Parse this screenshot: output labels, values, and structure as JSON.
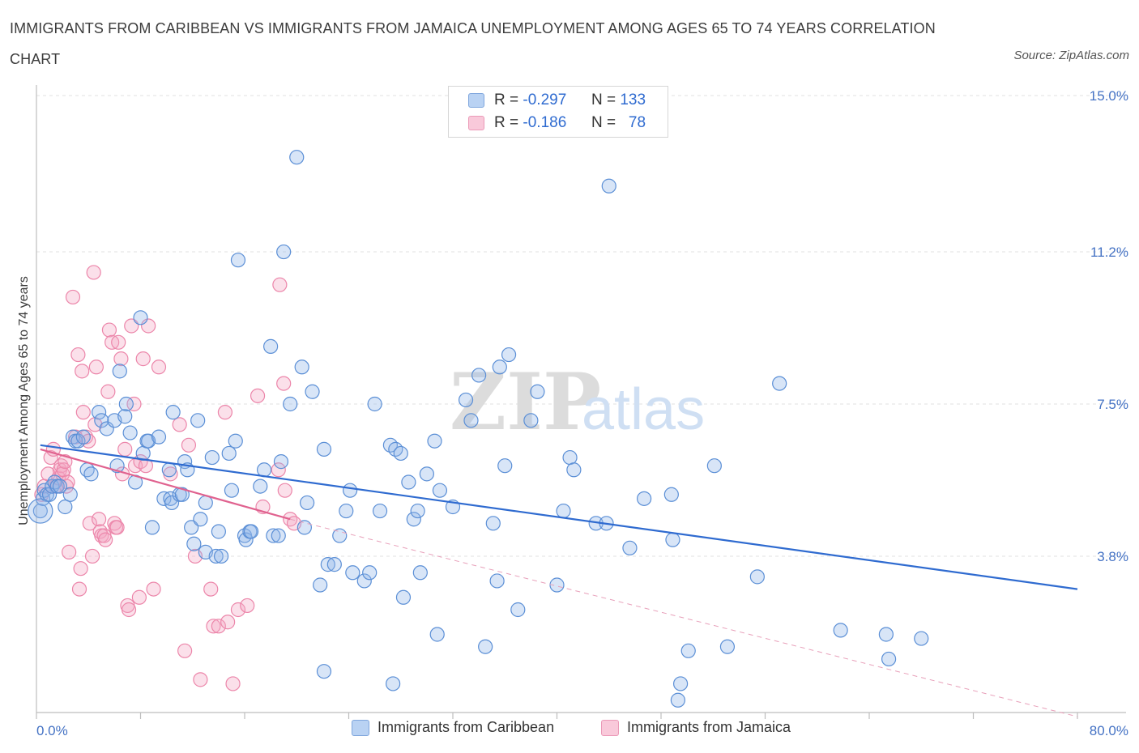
{
  "title": "IMMIGRANTS FROM CARIBBEAN VS IMMIGRANTS FROM JAMAICA UNEMPLOYMENT AMONG AGES 65 TO 74 YEARS CORRELATION CHART",
  "source": "Source: ZipAtlas.com",
  "watermark": {
    "zip": "ZIP",
    "atlas": "atlas"
  },
  "stats": [
    {
      "r_label": "R =",
      "r_value": "-0.297",
      "n_label": "N =",
      "n_value": "133",
      "color": "#8fb4e8"
    },
    {
      "r_label": "R =",
      "r_value": "-0.186",
      "n_label": "N =",
      "n_value": "78",
      "color": "#f3a6c2"
    }
  ],
  "legend": [
    {
      "label": "Immigrants from Caribbean",
      "color": "#8fb4e8"
    },
    {
      "label": "Immigrants from Jamaica",
      "color": "#f3a6c2"
    }
  ],
  "chart_data": {
    "type": "scatter",
    "title": "IMMIGRANTS FROM CARIBBEAN VS IMMIGRANTS FROM JAMAICA UNEMPLOYMENT AMONG AGES 65 TO 74 YEARS CORRELATION CHART",
    "xlabel": "",
    "ylabel": "Unemployment Among Ages 65 to 74 years",
    "xlim": [
      0,
      80
    ],
    "ylim": [
      0,
      15
    ],
    "x_tick_labels": [
      "0.0%",
      "80.0%"
    ],
    "y_ticks": [
      3.8,
      7.5,
      11.2,
      15.0
    ],
    "y_tick_labels": [
      "3.8%",
      "7.5%",
      "11.2%",
      "15.0%"
    ],
    "grid": true,
    "series": [
      {
        "name": "Immigrants from Caribbean",
        "color": "#5b8fd6",
        "trend": {
          "x0": 0.3,
          "y0": 6.5,
          "x1": 80,
          "y1": 3.0,
          "color": "#2f6bd0"
        },
        "points": [
          [
            0.3,
            4.9
          ],
          [
            0.5,
            5.2
          ],
          [
            0.6,
            5.4
          ],
          [
            0.8,
            5.3
          ],
          [
            1.0,
            5.3
          ],
          [
            1.2,
            5.5
          ],
          [
            1.4,
            5.6
          ],
          [
            1.6,
            5.5
          ],
          [
            1.8,
            5.5
          ],
          [
            2.2,
            5.0
          ],
          [
            2.6,
            5.3
          ],
          [
            2.8,
            6.7
          ],
          [
            3.0,
            6.6
          ],
          [
            3.2,
            6.6
          ],
          [
            3.6,
            6.7
          ],
          [
            3.9,
            5.9
          ],
          [
            4.2,
            5.8
          ],
          [
            4.8,
            7.3
          ],
          [
            5.0,
            7.1
          ],
          [
            5.4,
            6.9
          ],
          [
            6.0,
            7.1
          ],
          [
            6.2,
            6.0
          ],
          [
            6.4,
            8.3
          ],
          [
            6.8,
            7.2
          ],
          [
            6.9,
            7.5
          ],
          [
            7.2,
            6.8
          ],
          [
            7.6,
            5.6
          ],
          [
            8.0,
            9.6
          ],
          [
            8.2,
            6.3
          ],
          [
            8.5,
            6.6
          ],
          [
            8.6,
            6.6
          ],
          [
            8.9,
            4.5
          ],
          [
            9.4,
            6.7
          ],
          [
            9.8,
            5.2
          ],
          [
            10.2,
            5.9
          ],
          [
            10.3,
            5.2
          ],
          [
            10.4,
            5.1
          ],
          [
            10.5,
            7.3
          ],
          [
            11.0,
            5.3
          ],
          [
            11.2,
            5.3
          ],
          [
            11.4,
            6.1
          ],
          [
            11.6,
            5.9
          ],
          [
            11.9,
            4.5
          ],
          [
            12.1,
            4.1
          ],
          [
            12.4,
            7.1
          ],
          [
            12.6,
            4.7
          ],
          [
            13.0,
            5.1
          ],
          [
            13.0,
            3.9
          ],
          [
            13.5,
            6.2
          ],
          [
            13.8,
            3.8
          ],
          [
            14.0,
            4.4
          ],
          [
            14.2,
            3.8
          ],
          [
            14.8,
            6.3
          ],
          [
            15.0,
            5.4
          ],
          [
            15.3,
            6.6
          ],
          [
            15.5,
            11.0
          ],
          [
            16.0,
            4.3
          ],
          [
            16.1,
            4.2
          ],
          [
            16.4,
            4.4
          ],
          [
            16.5,
            4.4
          ],
          [
            17.2,
            5.5
          ],
          [
            17.5,
            5.9
          ],
          [
            18.0,
            8.9
          ],
          [
            18.2,
            4.3
          ],
          [
            18.6,
            4.3
          ],
          [
            18.8,
            6.1
          ],
          [
            19.0,
            11.2
          ],
          [
            19.5,
            7.5
          ],
          [
            20.0,
            13.5
          ],
          [
            20.4,
            8.4
          ],
          [
            20.6,
            4.5
          ],
          [
            20.8,
            5.1
          ],
          [
            21.2,
            7.8
          ],
          [
            21.8,
            3.1
          ],
          [
            22.1,
            1.0
          ],
          [
            22.1,
            6.4
          ],
          [
            22.4,
            3.6
          ],
          [
            22.9,
            3.6
          ],
          [
            23.3,
            4.3
          ],
          [
            23.8,
            4.9
          ],
          [
            24.1,
            5.4
          ],
          [
            24.3,
            3.4
          ],
          [
            25.2,
            3.2
          ],
          [
            25.6,
            3.4
          ],
          [
            26.0,
            7.5
          ],
          [
            26.4,
            4.9
          ],
          [
            27.2,
            6.5
          ],
          [
            27.4,
            0.7
          ],
          [
            27.6,
            6.4
          ],
          [
            28.0,
            6.3
          ],
          [
            28.2,
            2.8
          ],
          [
            28.6,
            5.6
          ],
          [
            29.0,
            4.7
          ],
          [
            29.3,
            4.9
          ],
          [
            29.5,
            3.4
          ],
          [
            30.0,
            5.8
          ],
          [
            30.6,
            6.6
          ],
          [
            30.8,
            1.9
          ],
          [
            31.0,
            5.4
          ],
          [
            32.0,
            5.0
          ],
          [
            33.0,
            7.6
          ],
          [
            33.4,
            7.1
          ],
          [
            34.0,
            8.2
          ],
          [
            34.5,
            1.6
          ],
          [
            35.1,
            4.6
          ],
          [
            35.4,
            3.2
          ],
          [
            35.6,
            8.4
          ],
          [
            36.0,
            6.0
          ],
          [
            36.3,
            8.7
          ],
          [
            37.0,
            2.5
          ],
          [
            38.0,
            7.1
          ],
          [
            38.5,
            7.8
          ],
          [
            40.0,
            3.1
          ],
          [
            40.5,
            4.9
          ],
          [
            41.0,
            6.2
          ],
          [
            41.3,
            5.9
          ],
          [
            43.0,
            4.6
          ],
          [
            43.8,
            4.6
          ],
          [
            44.0,
            12.8
          ],
          [
            45.6,
            4.0
          ],
          [
            46.7,
            5.2
          ],
          [
            48.8,
            5.3
          ],
          [
            48.9,
            4.2
          ],
          [
            49.5,
            0.7
          ],
          [
            49.3,
            0.3
          ],
          [
            50.1,
            1.5
          ],
          [
            52.1,
            6.0
          ],
          [
            53.1,
            1.6
          ],
          [
            55.4,
            3.3
          ],
          [
            57.1,
            8.0
          ],
          [
            61.8,
            2.0
          ],
          [
            65.3,
            1.9
          ],
          [
            65.5,
            1.3
          ],
          [
            68.0,
            1.8
          ]
        ]
      },
      {
        "name": "Immigrants from Jamaica",
        "color": "#ec86aa",
        "trend": {
          "x0": 0.3,
          "y0": 6.4,
          "x1": 19.5,
          "y1": 4.7,
          "color": "#e0628f"
        },
        "dashed_extension": {
          "x0": 19.5,
          "y0": 4.7,
          "x1": 80,
          "y1": -0.1
        },
        "points": [
          [
            0.4,
            5.3
          ],
          [
            0.6,
            5.5
          ],
          [
            0.9,
            5.8
          ],
          [
            1.1,
            6.2
          ],
          [
            1.3,
            6.4
          ],
          [
            1.5,
            5.5
          ],
          [
            1.7,
            5.7
          ],
          [
            1.8,
            5.9
          ],
          [
            1.9,
            6.0
          ],
          [
            2.0,
            5.8
          ],
          [
            2.1,
            5.9
          ],
          [
            2.2,
            6.1
          ],
          [
            2.3,
            5.5
          ],
          [
            2.4,
            5.6
          ],
          [
            2.5,
            3.9
          ],
          [
            2.8,
            10.1
          ],
          [
            3.0,
            6.7
          ],
          [
            3.2,
            8.7
          ],
          [
            3.3,
            3.0
          ],
          [
            3.4,
            3.5
          ],
          [
            3.5,
            8.3
          ],
          [
            3.6,
            7.3
          ],
          [
            3.8,
            6.7
          ],
          [
            4.0,
            6.6
          ],
          [
            4.1,
            4.6
          ],
          [
            4.3,
            3.8
          ],
          [
            4.4,
            10.7
          ],
          [
            4.5,
            7.0
          ],
          [
            4.6,
            8.4
          ],
          [
            4.8,
            4.7
          ],
          [
            4.9,
            4.4
          ],
          [
            5.0,
            4.3
          ],
          [
            5.2,
            4.3
          ],
          [
            5.3,
            4.2
          ],
          [
            5.5,
            7.8
          ],
          [
            5.6,
            9.3
          ],
          [
            5.8,
            9.0
          ],
          [
            6.0,
            4.6
          ],
          [
            6.1,
            4.5
          ],
          [
            6.2,
            4.5
          ],
          [
            6.3,
            9.0
          ],
          [
            6.5,
            8.6
          ],
          [
            6.6,
            5.8
          ],
          [
            6.8,
            6.4
          ],
          [
            7.0,
            2.6
          ],
          [
            7.1,
            2.5
          ],
          [
            7.3,
            9.4
          ],
          [
            7.5,
            7.5
          ],
          [
            7.6,
            6.0
          ],
          [
            7.9,
            2.8
          ],
          [
            8.0,
            6.1
          ],
          [
            8.2,
            8.6
          ],
          [
            8.4,
            6.0
          ],
          [
            8.6,
            9.4
          ],
          [
            9.0,
            3.0
          ],
          [
            9.4,
            8.4
          ],
          [
            10.3,
            5.8
          ],
          [
            11.0,
            7.0
          ],
          [
            11.4,
            1.5
          ],
          [
            11.7,
            6.5
          ],
          [
            12.2,
            3.8
          ],
          [
            12.6,
            0.8
          ],
          [
            13.4,
            3.0
          ],
          [
            13.6,
            2.1
          ],
          [
            14.0,
            2.1
          ],
          [
            14.5,
            7.3
          ],
          [
            14.7,
            2.2
          ],
          [
            15.1,
            0.7
          ],
          [
            15.5,
            2.5
          ],
          [
            16.2,
            2.6
          ],
          [
            17.0,
            7.7
          ],
          [
            17.4,
            5.0
          ],
          [
            18.7,
            10.4
          ],
          [
            19.5,
            4.7
          ],
          [
            19.0,
            8.0
          ],
          [
            19.1,
            5.4
          ],
          [
            18.6,
            5.9
          ],
          [
            19.8,
            4.6
          ]
        ]
      }
    ]
  }
}
